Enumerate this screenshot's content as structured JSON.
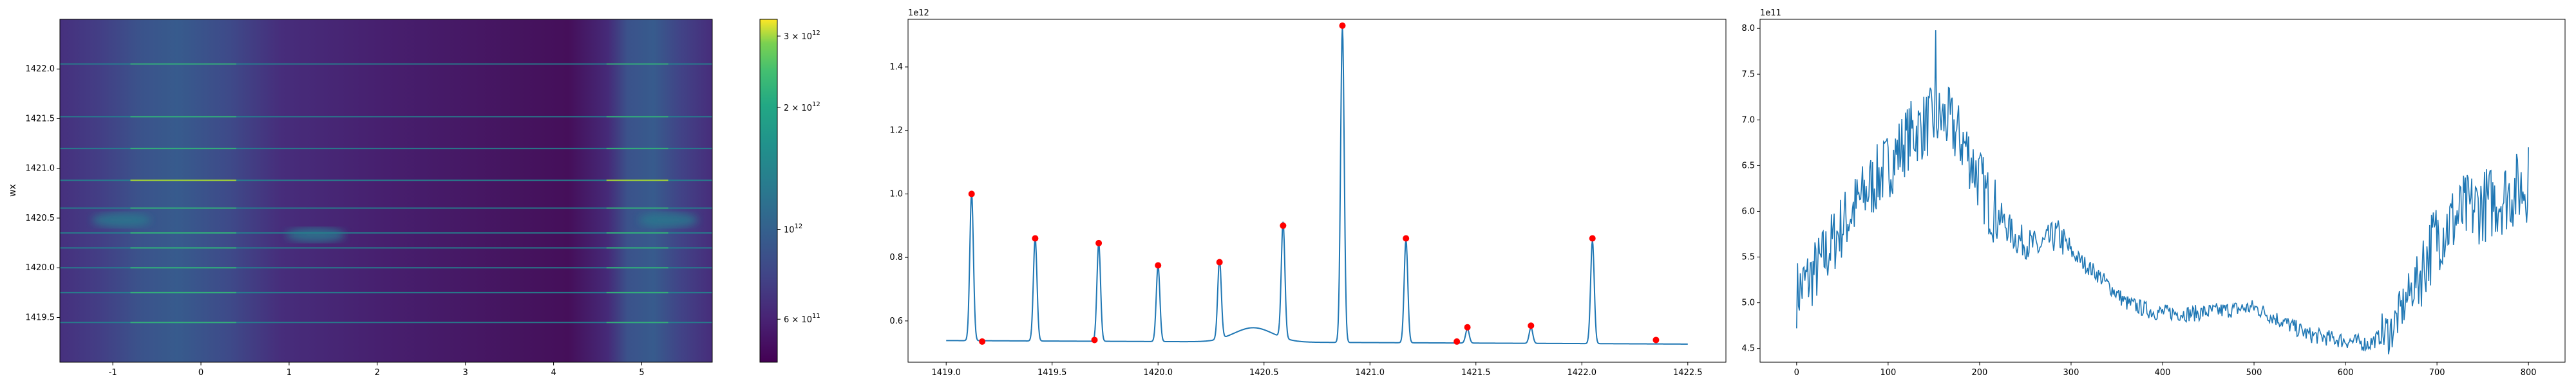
{
  "chart_data": [
    {
      "type": "heatmap",
      "ylabel": "wx",
      "xlabel": "",
      "xlim": [
        -1.6,
        5.8
      ],
      "ylim": [
        1419.05,
        1422.5
      ],
      "xticks": [
        -1,
        0,
        1,
        2,
        3,
        4,
        5
      ],
      "yticks": [
        1419.5,
        1420.0,
        1420.5,
        1421.0,
        1421.5,
        1422.0
      ],
      "ytick_labels": [
        "1419.5",
        "1420.0",
        "1420.5",
        "1421.0",
        "1421.5",
        "1422.0"
      ],
      "colormap": "viridis",
      "color_scale": "log",
      "colorbar_range": [
        470000000000.0,
        3300000000000.0
      ],
      "colorbar_ticks": [
        {
          "value": 600000000000,
          "mantissa": "6",
          "sep": " × ",
          "base": "10",
          "exp": "11"
        },
        {
          "value": 1000000000000,
          "mantissa": "",
          "sep": "",
          "base": "10",
          "exp": "12"
        },
        {
          "value": 2000000000000,
          "mantissa": "2",
          "sep": " × ",
          "base": "10",
          "exp": "12"
        },
        {
          "value": 3000000000000,
          "mantissa": "3",
          "sep": " × ",
          "base": "10",
          "exp": "12"
        }
      ],
      "horizontal_lines_wx": [
        1419.45,
        1419.75,
        1420.0,
        1420.2,
        1420.35,
        1420.6,
        1420.88,
        1421.2,
        1421.52,
        1422.05
      ],
      "bright_bands_x": [
        [
          -0.8,
          0.4
        ],
        [
          4.6,
          5.3
        ]
      ],
      "blobs": [
        [
          -0.9,
          1420.48
        ],
        [
          1.3,
          1420.33
        ],
        [
          5.3,
          1420.48
        ]
      ]
    },
    {
      "type": "line",
      "offset_text": "1e12",
      "xlabel": "",
      "ylabel": "",
      "xlim": [
        1418.82,
        1422.68
      ],
      "ylim": [
        0.47,
        1.55
      ],
      "xticks": [
        1419.0,
        1419.5,
        1420.0,
        1420.5,
        1421.0,
        1421.5,
        1422.0,
        1422.5
      ],
      "xtick_labels": [
        "1419.0",
        "1419.5",
        "1420.0",
        "1420.5",
        "1421.0",
        "1421.5",
        "1422.0",
        "1422.5"
      ],
      "yticks": [
        0.6,
        0.8,
        1.0,
        1.2,
        1.4
      ],
      "ytick_labels": [
        "0.6",
        "0.8",
        "1.0",
        "1.2",
        "1.4"
      ],
      "line_color": "#1f77b4",
      "marker_color": "#ff0000",
      "baseline": 0.535,
      "peaks": [
        {
          "x": 1419.12,
          "y": 1.0
        },
        {
          "x": 1419.42,
          "y": 0.86
        },
        {
          "x": 1419.72,
          "y": 0.845
        },
        {
          "x": 1420.0,
          "y": 0.775
        },
        {
          "x": 1420.29,
          "y": 0.785
        },
        {
          "x": 1420.59,
          "y": 0.9
        },
        {
          "x": 1420.87,
          "y": 1.53
        },
        {
          "x": 1421.17,
          "y": 0.86
        },
        {
          "x": 1421.46,
          "y": 0.58
        },
        {
          "x": 1421.76,
          "y": 0.585
        },
        {
          "x": 1422.05,
          "y": 0.86
        }
      ],
      "markers": [
        {
          "x": 1419.12,
          "y": 1.0
        },
        {
          "x": 1419.17,
          "y": 0.535
        },
        {
          "x": 1419.42,
          "y": 0.86
        },
        {
          "x": 1419.7,
          "y": 0.54
        },
        {
          "x": 1419.72,
          "y": 0.845
        },
        {
          "x": 1420.0,
          "y": 0.775
        },
        {
          "x": 1420.29,
          "y": 0.785
        },
        {
          "x": 1420.59,
          "y": 0.9
        },
        {
          "x": 1420.87,
          "y": 1.53
        },
        {
          "x": 1421.17,
          "y": 0.86
        },
        {
          "x": 1421.41,
          "y": 0.535
        },
        {
          "x": 1421.46,
          "y": 0.58
        },
        {
          "x": 1421.76,
          "y": 0.585
        },
        {
          "x": 1422.05,
          "y": 0.86
        },
        {
          "x": 1422.35,
          "y": 0.54
        }
      ]
    },
    {
      "type": "line",
      "offset_text": "1e11",
      "xlabel": "",
      "ylabel": "",
      "xlim": [
        -40,
        840
      ],
      "ylim": [
        4.35,
        8.1
      ],
      "xticks": [
        0,
        100,
        200,
        300,
        400,
        500,
        600,
        700,
        800
      ],
      "xtick_labels": [
        "0",
        "100",
        "200",
        "300",
        "400",
        "500",
        "600",
        "700",
        "800"
      ],
      "yticks": [
        4.5,
        5.0,
        5.5,
        6.0,
        6.5,
        7.0,
        7.5,
        8.0
      ],
      "ytick_labels": [
        "4.5",
        "5.0",
        "5.5",
        "6.0",
        "6.5",
        "7.0",
        "7.5",
        "8.0"
      ],
      "line_color": "#1f77b4",
      "trend": [
        [
          0,
          5.1
        ],
        [
          25,
          5.4
        ],
        [
          50,
          5.85
        ],
        [
          75,
          6.2
        ],
        [
          100,
          6.5
        ],
        [
          125,
          6.85
        ],
        [
          150,
          7.0
        ],
        [
          165,
          7.0
        ],
        [
          185,
          6.7
        ],
        [
          210,
          6.1
        ],
        [
          240,
          5.7
        ],
        [
          265,
          5.6
        ],
        [
          285,
          5.75
        ],
        [
          300,
          5.55
        ],
        [
          330,
          5.3
        ],
        [
          360,
          5.0
        ],
        [
          390,
          4.9
        ],
        [
          430,
          4.88
        ],
        [
          470,
          4.92
        ],
        [
          500,
          4.95
        ],
        [
          530,
          4.8
        ],
        [
          560,
          4.65
        ],
        [
          590,
          4.6
        ],
        [
          625,
          4.55
        ],
        [
          650,
          4.7
        ],
        [
          680,
          5.3
        ],
        [
          700,
          5.75
        ],
        [
          730,
          6.0
        ],
        [
          760,
          6.1
        ],
        [
          800,
          6.3
        ]
      ]
    }
  ]
}
